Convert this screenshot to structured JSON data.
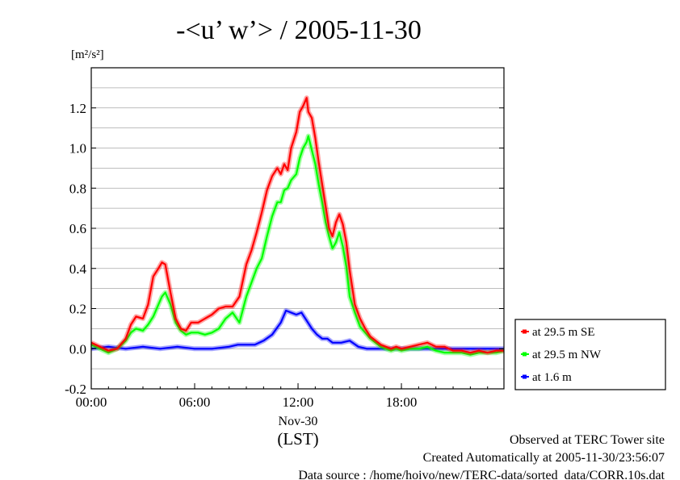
{
  "chart_data": {
    "type": "line",
    "title": "-<u’ w’> / 2005-11-30",
    "ylabel": "[m²/s²]",
    "xlabel": "(LST)",
    "x_date_label": "Nov-30",
    "x_unit": "hours",
    "xlim": [
      0,
      23.95
    ],
    "ylim": [
      -0.2,
      1.4
    ],
    "x_ticks": [
      {
        "value": 0,
        "label": "00:00"
      },
      {
        "value": 6,
        "label": "06:00"
      },
      {
        "value": 12,
        "label": "12:00"
      },
      {
        "value": 18,
        "label": "18:00"
      }
    ],
    "y_ticks": [
      {
        "value": -0.2,
        "label": "-0.2"
      },
      {
        "value": 0.0,
        "label": "0.0"
      },
      {
        "value": 0.2,
        "label": "0.2"
      },
      {
        "value": 0.4,
        "label": "0.4"
      },
      {
        "value": 0.6,
        "label": "0.6"
      },
      {
        "value": 0.8,
        "label": "0.8"
      },
      {
        "value": 1.0,
        "label": "1.0"
      },
      {
        "value": 1.2,
        "label": "1.2"
      }
    ],
    "grid": "horizontal",
    "legend_position": "bottom-right-outside",
    "series": [
      {
        "name": "at 29.5 m SE",
        "color": "#ff0000",
        "x": [
          0,
          0.5,
          1,
          1.5,
          2,
          2.3,
          2.6,
          3,
          3.3,
          3.6,
          3.9,
          4.1,
          4.3,
          4.6,
          4.9,
          5.2,
          5.5,
          5.8,
          6.2,
          6.6,
          7.0,
          7.4,
          7.8,
          8.2,
          8.6,
          9.0,
          9.3,
          9.6,
          9.9,
          10.2,
          10.5,
          10.8,
          11.0,
          11.2,
          11.4,
          11.6,
          11.9,
          12.1,
          12.3,
          12.5,
          12.6,
          12.8,
          13.0,
          13.2,
          13.4,
          13.6,
          13.8,
          14.0,
          14.2,
          14.4,
          14.6,
          14.8,
          15.0,
          15.3,
          15.6,
          15.9,
          16.2,
          16.5,
          16.8,
          17.1,
          17.4,
          17.7,
          18.0,
          18.5,
          19,
          19.5,
          20,
          20.5,
          21,
          21.5,
          22,
          22.5,
          23,
          23.5,
          23.95
        ],
        "y": [
          0.03,
          0.01,
          -0.01,
          0.0,
          0.05,
          0.12,
          0.16,
          0.15,
          0.22,
          0.36,
          0.4,
          0.43,
          0.42,
          0.28,
          0.15,
          0.1,
          0.09,
          0.13,
          0.13,
          0.15,
          0.17,
          0.2,
          0.21,
          0.21,
          0.26,
          0.42,
          0.49,
          0.58,
          0.68,
          0.79,
          0.86,
          0.9,
          0.87,
          0.92,
          0.89,
          1.0,
          1.08,
          1.18,
          1.21,
          1.25,
          1.18,
          1.15,
          1.05,
          0.93,
          0.82,
          0.71,
          0.6,
          0.56,
          0.63,
          0.67,
          0.62,
          0.53,
          0.39,
          0.22,
          0.15,
          0.1,
          0.06,
          0.04,
          0.02,
          0.01,
          0.0,
          0.01,
          0.0,
          0.01,
          0.02,
          0.03,
          0.01,
          0.01,
          -0.01,
          -0.01,
          -0.02,
          -0.01,
          -0.02,
          -0.01,
          -0.01
        ]
      },
      {
        "name": "at 29.5 m NW",
        "color": "#00ff00",
        "x": [
          0,
          0.5,
          1,
          1.5,
          2,
          2.3,
          2.6,
          3,
          3.3,
          3.6,
          3.9,
          4.1,
          4.3,
          4.6,
          4.9,
          5.2,
          5.5,
          5.8,
          6.2,
          6.6,
          7.0,
          7.4,
          7.8,
          8.2,
          8.6,
          9.0,
          9.3,
          9.6,
          9.9,
          10.2,
          10.5,
          10.8,
          11.0,
          11.2,
          11.4,
          11.6,
          11.9,
          12.1,
          12.3,
          12.5,
          12.6,
          12.8,
          13.0,
          13.2,
          13.4,
          13.6,
          13.8,
          14.0,
          14.2,
          14.4,
          14.6,
          14.8,
          15.0,
          15.3,
          15.6,
          15.9,
          16.2,
          16.5,
          16.8,
          17.1,
          17.4,
          17.7,
          18.0,
          18.5,
          19,
          19.5,
          20,
          20.5,
          21,
          21.5,
          22,
          22.5,
          23,
          23.5,
          23.95
        ],
        "y": [
          0.02,
          0.0,
          -0.02,
          0.0,
          0.04,
          0.08,
          0.1,
          0.09,
          0.12,
          0.16,
          0.22,
          0.26,
          0.28,
          0.22,
          0.13,
          0.09,
          0.07,
          0.08,
          0.08,
          0.07,
          0.08,
          0.1,
          0.15,
          0.18,
          0.13,
          0.26,
          0.33,
          0.4,
          0.45,
          0.56,
          0.66,
          0.73,
          0.73,
          0.79,
          0.8,
          0.84,
          0.87,
          0.95,
          1.0,
          1.03,
          1.06,
          0.99,
          0.92,
          0.82,
          0.73,
          0.63,
          0.56,
          0.5,
          0.53,
          0.58,
          0.51,
          0.41,
          0.26,
          0.18,
          0.11,
          0.08,
          0.05,
          0.03,
          0.01,
          0.0,
          -0.01,
          0.0,
          -0.01,
          0.0,
          0.0,
          0.01,
          -0.01,
          -0.02,
          -0.02,
          -0.02,
          -0.03,
          -0.02,
          -0.02,
          -0.02,
          -0.01
        ]
      },
      {
        "name": "at 1.6 m",
        "color": "#0000ff",
        "x": [
          0,
          1,
          2,
          3,
          4,
          5,
          6,
          7,
          8,
          8.5,
          9,
          9.5,
          10,
          10.5,
          11,
          11.3,
          11.6,
          11.9,
          12.2,
          12.5,
          12.8,
          13.1,
          13.4,
          13.7,
          14,
          14.5,
          15,
          15.5,
          16,
          17,
          18,
          19,
          20,
          21,
          22,
          23,
          23.95
        ],
        "y": [
          0.0,
          0.01,
          0.0,
          0.01,
          0.0,
          0.01,
          0.0,
          0.0,
          0.01,
          0.02,
          0.02,
          0.02,
          0.04,
          0.07,
          0.13,
          0.19,
          0.18,
          0.17,
          0.18,
          0.14,
          0.1,
          0.07,
          0.05,
          0.05,
          0.03,
          0.03,
          0.04,
          0.01,
          0.0,
          0.0,
          0.0,
          0.0,
          0.0,
          0.0,
          0.0,
          0.0,
          0.0
        ]
      }
    ]
  },
  "footer": {
    "line1": "Observed at TERC Tower site",
    "line2": "Created Automatically at 2005-11-30/23:56:07",
    "line3": "Data source : /home/hoivo/new/TERC-data/sorted_data/CORR.10s.dat"
  }
}
